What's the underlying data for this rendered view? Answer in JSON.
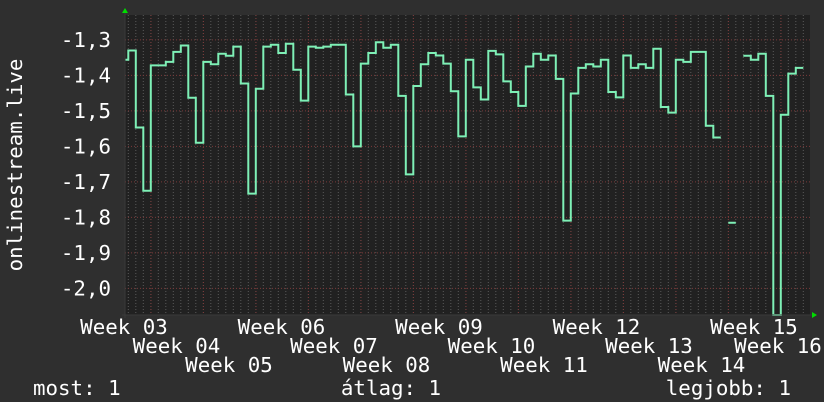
{
  "chart_data": {
    "type": "line",
    "step": true,
    "ylabel": "onlinestream.live",
    "xlabel": "",
    "title": "",
    "ylim": [
      -2.075,
      -1.23
    ],
    "yticks": [
      -1.3,
      -1.4,
      -1.5,
      -1.6,
      -1.7,
      -1.8,
      -1.9,
      -2.0
    ],
    "ytick_labels": [
      "-1,3",
      "-1,4",
      "-1,5",
      "-1,6",
      "-1,7",
      "-1,8",
      "-1,9",
      "-2,0"
    ],
    "xtick_labels": [
      "Week 03",
      "Week 04",
      "Week 05",
      "Week 06",
      "Week 07",
      "Week 08",
      "Week 09",
      "Week 10",
      "Week 11",
      "Week 12",
      "Week 13",
      "Week 14",
      "Week 15",
      "Week 16"
    ],
    "x_resolution": "daily",
    "grid": true,
    "series": [
      {
        "values": [
          -1.356,
          -1.33,
          -1.547,
          -1.725,
          -1.372,
          -1.372,
          -1.362,
          -1.334,
          -1.316,
          -1.463,
          -1.59,
          -1.362,
          -1.369,
          -1.339,
          -1.345,
          -1.319,
          -1.423,
          -1.733,
          -1.438,
          -1.319,
          -1.314,
          -1.337,
          -1.311,
          -1.384,
          -1.471,
          -1.319,
          -1.322,
          -1.319,
          -1.314,
          -1.314,
          -1.454,
          -1.6,
          -1.367,
          -1.337,
          -1.307,
          -1.322,
          -1.314,
          -1.458,
          -1.679,
          -1.43,
          -1.369,
          -1.337,
          -1.344,
          -1.367,
          -1.445,
          -1.572,
          -1.356,
          -1.434,
          -1.468,
          -1.331,
          -1.341,
          -1.417,
          -1.447,
          -1.486,
          -1.375,
          -1.339,
          -1.356,
          -1.344,
          -1.41,
          -1.809,
          -1.451,
          -1.379,
          -1.369,
          -1.375,
          -1.356,
          -1.447,
          -1.462,
          -1.344,
          -1.379,
          -1.369,
          -1.379,
          -1.325,
          -1.489,
          -1.505,
          -1.356,
          -1.362,
          -1.334,
          -1.334,
          -1.542,
          -1.575,
          null,
          -1.815,
          null,
          -1.345,
          -1.356,
          -1.339,
          -1.458,
          -2.1,
          -1.511,
          -1.395,
          -1.379
        ]
      }
    ],
    "colors": {
      "background": "#2f2f2f",
      "plot_background": "#212121",
      "line": "#7ef0b6",
      "major_grid": "#7a3a3a",
      "minor_grid": "#5a5a5a",
      "axis_arrow": "#00dd00",
      "text": "#ffffff"
    }
  },
  "legend": {
    "current": "most: 1",
    "average": "átlag: 1",
    "max": "legjobb: 1"
  }
}
